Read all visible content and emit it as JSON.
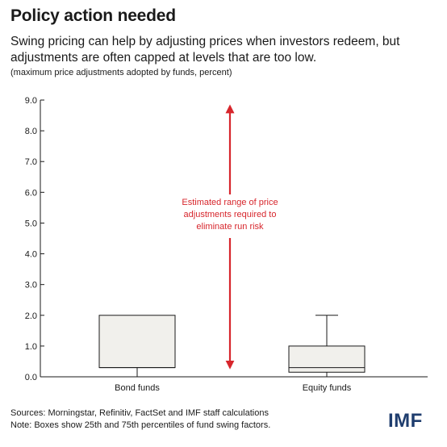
{
  "title": "Policy action needed",
  "subtitle": "Swing pricing can help by adjusting prices when investors redeem, but adjustments are often capped at levels that are too low.",
  "unit_note": "(maximum price adjustments adopted by funds, percent)",
  "sources": "Sources: Morningstar, Refinitiv, FactSet and IMF staff calculations",
  "note": "Note: Boxes show 25th and 75th percentiles of fund swing factors.",
  "logo": "IMF",
  "colors": {
    "box_fill": "#f1f0ec",
    "annotation": "#d7262c",
    "axis": "#1a1a1a",
    "logo": "#1f3d6e"
  },
  "chart_data": {
    "type": "boxplot",
    "ylim": [
      0,
      9
    ],
    "yticks": [
      "0.0",
      "1.0",
      "2.0",
      "3.0",
      "4.0",
      "5.0",
      "6.0",
      "7.0",
      "8.0",
      "9.0"
    ],
    "categories": [
      "Bond funds",
      "Equity funds"
    ],
    "boxes": [
      {
        "category": "Bond funds",
        "min": 0.0,
        "q1": 0.3,
        "median": 0.3,
        "q3": 2.0,
        "max": 2.0
      },
      {
        "category": "Equity funds",
        "min": 0.0,
        "q1": 0.15,
        "median": 0.3,
        "q3": 1.0,
        "max": 2.0
      }
    ],
    "annotation": {
      "lines": [
        "Estimated range of price",
        "adjustments required to",
        "eliminate run risk"
      ],
      "range": [
        0.3,
        8.8
      ]
    }
  }
}
